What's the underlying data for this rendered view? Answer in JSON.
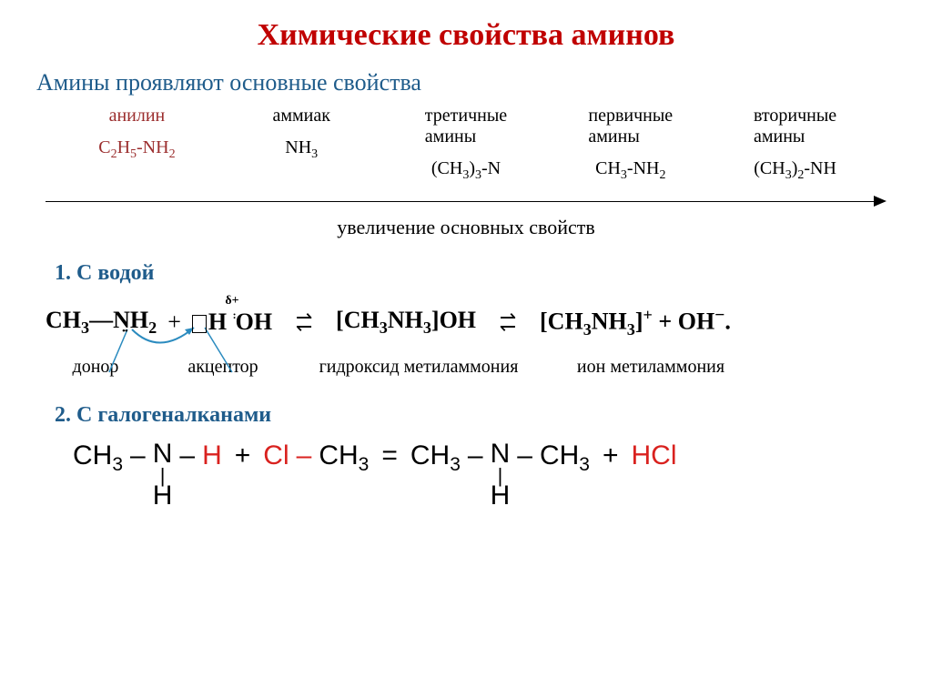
{
  "title": {
    "text": "Химические свойства аминов",
    "color": "#c00000",
    "fontsize": 34
  },
  "subtitle": {
    "text": "Амины проявляют основные свойства",
    "color": "#1f5c8b",
    "fontsize": 26
  },
  "series": {
    "label_fontsize": 20,
    "formula_fontsize": 20,
    "items": [
      {
        "label": "анилин",
        "label_color": "#9b2d2d",
        "formula_html": "C<span class='sub'>2</span>H<span class='sub'>5</span>-NH<span class='sub'>2</span>",
        "formula_color": "#9b2d2d"
      },
      {
        "label": "аммиак",
        "label_color": "#000000",
        "formula_html": "NH<span class='sub'>3</span>",
        "formula_color": "#000000"
      },
      {
        "label": "третичные амины",
        "label_color": "#000000",
        "formula_html": "(CH<span class='sub'>3</span>)<span class='sub'>3</span>-N",
        "formula_color": "#000000"
      },
      {
        "label": "первичные амины",
        "label_color": "#000000",
        "formula_html": "CH<span class='sub'>3</span>-NH<span class='sub'>2</span>",
        "formula_color": "#000000"
      },
      {
        "label": "вторичные амины",
        "label_color": "#000000",
        "formula_html": "(CH<span class='sub'>3</span>)<span class='sub'>2</span>-NH",
        "formula_color": "#000000"
      }
    ],
    "arrow_caption": "увеличение основных свойств",
    "arrow_caption_fontsize": 22
  },
  "section1": {
    "heading": "1. С водой",
    "heading_color": "#1f5c8b",
    "heading_fontsize": 24,
    "delta_plus": "δ+",
    "donor_label": "донор",
    "acceptor_label": "акцептор",
    "product1_label": "гидроксид метиламмония",
    "product2_label": "ион метиламмония",
    "colors": {
      "arrow": "#2b8bbf",
      "text": "#000000"
    }
  },
  "section2": {
    "heading": "2. С галогеналканами",
    "heading_color": "#1f5c8b",
    "heading_fontsize": 24,
    "colors": {
      "black": "#000000",
      "red": "#d9221f"
    },
    "frag_ch3": "CH",
    "frag_3": "3",
    "frag_N": "N",
    "frag_H": "H",
    "frag_Cl": "Cl",
    "frag_HCl": "HCl",
    "plus": "+",
    "eq": "="
  }
}
